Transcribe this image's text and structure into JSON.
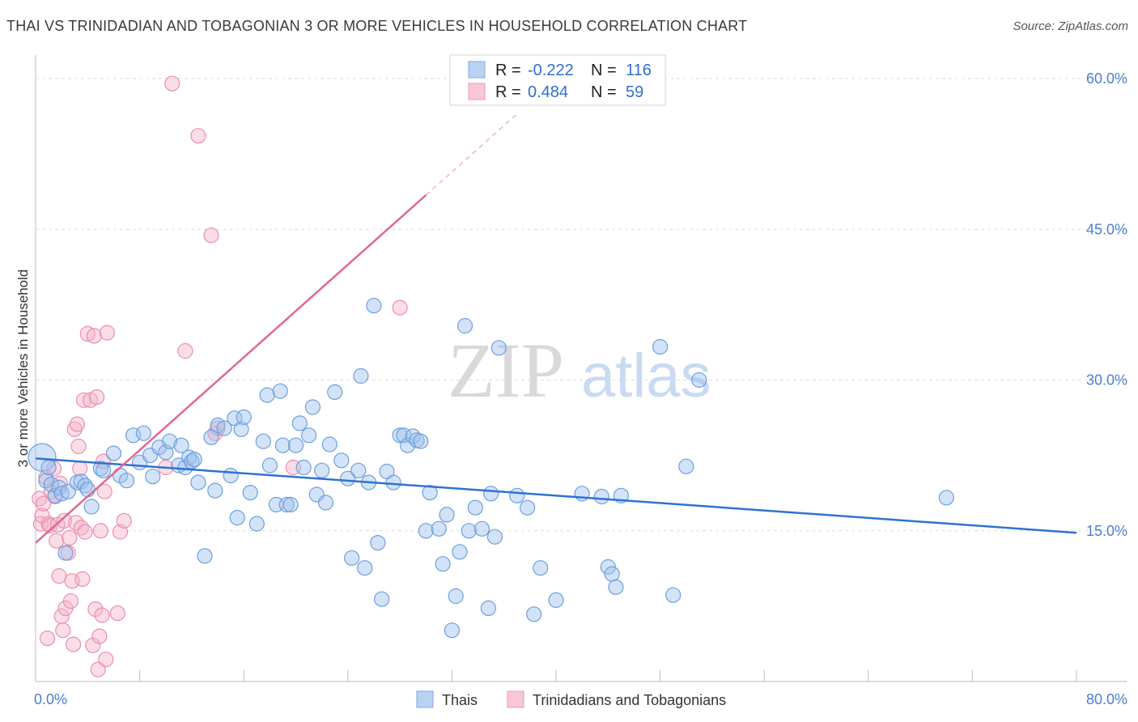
{
  "title": "THAI VS TRINIDADIAN AND TOBAGONIAN 3 OR MORE VEHICLES IN HOUSEHOLD CORRELATION CHART",
  "source": "Source: ZipAtlas.com",
  "watermark": {
    "zip": "ZIP",
    "atlas": "atlas"
  },
  "colors": {
    "blue": "#9ec2ee",
    "blue_stroke": "#6e9fdc",
    "blue_line": "#2f72d2",
    "pink": "#f4b3c9",
    "pink_stroke": "#ea8fae",
    "pink_line": "#e06892",
    "tick": "#4a7fd0"
  },
  "legend_box": {
    "rows": [
      {
        "r_label": "R =",
        "r_value": "-0.222",
        "n_label": "N =",
        "n_value": "116"
      },
      {
        "r_label": "R =",
        "r_value": "0.484",
        "n_label": "N =",
        "n_value": "59"
      }
    ]
  },
  "chart_data": {
    "type": "scatter",
    "ylabel": "3 or more Vehicles in Household",
    "xlim": [
      0,
      80
    ],
    "ylim": [
      0,
      60
    ],
    "x_tick_labels": [
      "0.0%",
      "80.0%"
    ],
    "y_ticks": [
      15,
      30,
      45,
      60
    ],
    "y_tick_labels": [
      "15.0%",
      "30.0%",
      "45.0%",
      "60.0%"
    ],
    "legend": [
      "Thais",
      "Trinidadians and Tobagonians"
    ],
    "series": [
      {
        "name": "Thais",
        "trend": {
          "x": [
            0,
            80
          ],
          "y": [
            22.2,
            14.8
          ],
          "dashed_x": null
        },
        "points": [
          [
            0.5,
            22.3
          ],
          [
            0.8,
            20.0
          ],
          [
            1.0,
            21.3
          ],
          [
            1.2,
            19.6
          ],
          [
            1.5,
            18.5
          ],
          [
            1.8,
            19.3
          ],
          [
            2.0,
            18.7
          ],
          [
            2.3,
            12.8
          ],
          [
            2.5,
            18.9
          ],
          [
            3.2,
            19.8
          ],
          [
            3.5,
            19.9
          ],
          [
            3.8,
            19.5
          ],
          [
            4.0,
            19.1
          ],
          [
            4.3,
            17.4
          ],
          [
            5.0,
            21.2
          ],
          [
            5.2,
            21.0
          ],
          [
            6.0,
            22.7
          ],
          [
            6.5,
            20.5
          ],
          [
            7.0,
            20.0
          ],
          [
            7.5,
            24.5
          ],
          [
            8.0,
            21.8
          ],
          [
            8.3,
            24.7
          ],
          [
            8.8,
            22.5
          ],
          [
            9.0,
            20.4
          ],
          [
            9.5,
            23.3
          ],
          [
            10.0,
            22.8
          ],
          [
            10.3,
            23.9
          ],
          [
            11.0,
            21.5
          ],
          [
            11.2,
            23.5
          ],
          [
            11.5,
            21.3
          ],
          [
            11.8,
            22.3
          ],
          [
            12.0,
            21.9
          ],
          [
            12.2,
            22.1
          ],
          [
            12.5,
            19.8
          ],
          [
            13.0,
            12.5
          ],
          [
            13.5,
            24.3
          ],
          [
            13.8,
            19.0
          ],
          [
            14.0,
            25.5
          ],
          [
            14.5,
            25.2
          ],
          [
            15.0,
            20.5
          ],
          [
            15.3,
            26.2
          ],
          [
            15.5,
            16.3
          ],
          [
            15.8,
            25.1
          ],
          [
            16.0,
            26.3
          ],
          [
            16.5,
            18.8
          ],
          [
            17.0,
            15.7
          ],
          [
            17.5,
            23.9
          ],
          [
            17.8,
            28.5
          ],
          [
            18.0,
            21.5
          ],
          [
            18.5,
            17.6
          ],
          [
            18.8,
            28.9
          ],
          [
            19.0,
            23.5
          ],
          [
            19.3,
            17.6
          ],
          [
            19.6,
            17.6
          ],
          [
            20.0,
            23.5
          ],
          [
            20.3,
            25.7
          ],
          [
            20.6,
            21.3
          ],
          [
            21.0,
            24.5
          ],
          [
            21.3,
            27.3
          ],
          [
            21.6,
            18.6
          ],
          [
            22.0,
            21.0
          ],
          [
            22.3,
            17.8
          ],
          [
            22.6,
            23.6
          ],
          [
            23.0,
            28.8
          ],
          [
            23.5,
            22.0
          ],
          [
            24.0,
            20.2
          ],
          [
            24.3,
            12.3
          ],
          [
            24.8,
            21.0
          ],
          [
            25.0,
            30.4
          ],
          [
            25.3,
            11.3
          ],
          [
            25.6,
            19.8
          ],
          [
            26.0,
            37.4
          ],
          [
            26.3,
            13.8
          ],
          [
            26.6,
            8.2
          ],
          [
            27.0,
            20.9
          ],
          [
            27.5,
            19.8
          ],
          [
            28.0,
            24.5
          ],
          [
            28.3,
            24.5
          ],
          [
            28.6,
            23.5
          ],
          [
            29.0,
            24.4
          ],
          [
            29.3,
            24.0
          ],
          [
            29.6,
            23.9
          ],
          [
            30.0,
            15.0
          ],
          [
            30.3,
            18.8
          ],
          [
            31.0,
            15.2
          ],
          [
            31.3,
            11.7
          ],
          [
            31.6,
            16.6
          ],
          [
            32.0,
            5.1
          ],
          [
            32.3,
            8.5
          ],
          [
            32.6,
            12.9
          ],
          [
            33.0,
            35.4
          ],
          [
            33.3,
            15.0
          ],
          [
            33.8,
            17.3
          ],
          [
            34.3,
            15.2
          ],
          [
            34.8,
            7.3
          ],
          [
            35.0,
            18.7
          ],
          [
            35.3,
            14.4
          ],
          [
            35.6,
            33.2
          ],
          [
            37.0,
            18.5
          ],
          [
            37.8,
            17.3
          ],
          [
            38.3,
            6.7
          ],
          [
            38.8,
            11.3
          ],
          [
            40.0,
            8.1
          ],
          [
            42.0,
            18.7
          ],
          [
            43.5,
            18.4
          ],
          [
            44.0,
            11.4
          ],
          [
            44.3,
            10.7
          ],
          [
            44.6,
            9.4
          ],
          [
            45.0,
            18.5
          ],
          [
            48.0,
            33.3
          ],
          [
            49.0,
            8.6
          ],
          [
            50.0,
            21.4
          ],
          [
            51.0,
            30.0
          ],
          [
            70.0,
            18.3
          ]
        ]
      },
      {
        "name": "Trinidadians and Tobagonians",
        "trend": {
          "x": [
            0,
            30
          ],
          "y": [
            13.8,
            48.4
          ],
          "dashed_x": [
            30,
            37
          ]
        },
        "points": [
          [
            0.3,
            18.2
          ],
          [
            0.4,
            15.7
          ],
          [
            0.5,
            16.5
          ],
          [
            0.6,
            17.7
          ],
          [
            0.8,
            20.3
          ],
          [
            1.0,
            15.7
          ],
          [
            1.1,
            15.5
          ],
          [
            1.2,
            18.9
          ],
          [
            1.4,
            21.2
          ],
          [
            1.5,
            18.4
          ],
          [
            1.6,
            14.0
          ],
          [
            1.7,
            15.6
          ],
          [
            1.8,
            10.5
          ],
          [
            1.9,
            19.7
          ],
          [
            2.0,
            6.5
          ],
          [
            2.1,
            5.1
          ],
          [
            2.2,
            16.0
          ],
          [
            2.3,
            7.3
          ],
          [
            2.5,
            12.8
          ],
          [
            2.6,
            14.3
          ],
          [
            2.7,
            8.0
          ],
          [
            2.8,
            10.0
          ],
          [
            2.9,
            3.7
          ],
          [
            3.0,
            25.1
          ],
          [
            3.1,
            15.8
          ],
          [
            3.2,
            25.6
          ],
          [
            3.3,
            23.4
          ],
          [
            3.4,
            21.2
          ],
          [
            3.5,
            15.3
          ],
          [
            3.6,
            10.2
          ],
          [
            3.7,
            28.0
          ],
          [
            3.8,
            14.9
          ],
          [
            4.0,
            34.6
          ],
          [
            4.2,
            28.0
          ],
          [
            4.4,
            3.6
          ],
          [
            4.5,
            34.4
          ],
          [
            4.6,
            7.2
          ],
          [
            4.7,
            28.3
          ],
          [
            4.8,
            1.2
          ],
          [
            4.9,
            4.5
          ],
          [
            5.0,
            15.0
          ],
          [
            5.1,
            6.6
          ],
          [
            5.2,
            21.9
          ],
          [
            5.3,
            18.9
          ],
          [
            5.4,
            2.2
          ],
          [
            5.5,
            34.7
          ],
          [
            6.3,
            6.8
          ],
          [
            6.5,
            14.9
          ],
          [
            6.8,
            16.0
          ],
          [
            10.0,
            21.3
          ],
          [
            10.5,
            59.5
          ],
          [
            11.5,
            32.9
          ],
          [
            12.5,
            54.3
          ],
          [
            13.5,
            44.4
          ],
          [
            13.8,
            24.7
          ],
          [
            14.0,
            25.2
          ],
          [
            19.8,
            21.3
          ],
          [
            28.0,
            37.2
          ],
          [
            0.9,
            4.3
          ]
        ]
      }
    ]
  }
}
